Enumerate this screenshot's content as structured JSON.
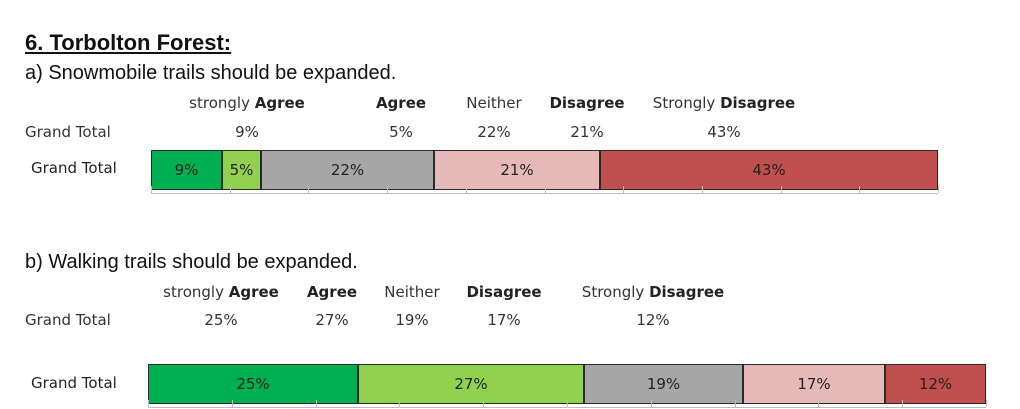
{
  "heading": "6.  Torbolton Forest:",
  "chart_data": [
    {
      "type": "bar",
      "stacked": true,
      "orientation": "horizontal",
      "title": "a) Snowmobile trails should be expanded.",
      "row_label": "Grand Total",
      "categories": [
        {
          "prefix": "strongly",
          "keyword": "Agree"
        },
        {
          "prefix": "",
          "keyword": "Agree"
        },
        {
          "prefix": "Neither",
          "keyword": ""
        },
        {
          "prefix": "",
          "keyword": "Disagree"
        },
        {
          "prefix": "Strongly",
          "keyword": "Disagree"
        }
      ],
      "series": [
        {
          "name": "strongly Agree",
          "value": 9,
          "label": "9%",
          "color": "#00b050"
        },
        {
          "name": "Agree",
          "value": 5,
          "label": "5%",
          "color": "#92d050"
        },
        {
          "name": "Neither",
          "value": 22,
          "label": "22%",
          "color": "#a6a6a6"
        },
        {
          "name": "Disagree",
          "value": 21,
          "label": "21%",
          "color": "#e6b9b8"
        },
        {
          "name": "Strongly Disagree",
          "value": 43,
          "label": "43%",
          "color": "#c0504d"
        }
      ],
      "xlim": [
        0,
        100
      ],
      "grid": false
    },
    {
      "type": "bar",
      "stacked": true,
      "orientation": "horizontal",
      "title": "b) Walking trails should be expanded.",
      "row_label": "Grand Total",
      "categories": [
        {
          "prefix": "strongly",
          "keyword": "Agree"
        },
        {
          "prefix": "",
          "keyword": "Agree"
        },
        {
          "prefix": "Neither",
          "keyword": ""
        },
        {
          "prefix": "",
          "keyword": "Disagree"
        },
        {
          "prefix": "Strongly",
          "keyword": "Disagree"
        }
      ],
      "series": [
        {
          "name": "strongly Agree",
          "value": 25,
          "label": "25%",
          "color": "#00b050"
        },
        {
          "name": "Agree",
          "value": 27,
          "label": "27%",
          "color": "#92d050"
        },
        {
          "name": "Neither",
          "value": 19,
          "label": "19%",
          "color": "#a6a6a6"
        },
        {
          "name": "Disagree",
          "value": 17,
          "label": "17%",
          "color": "#e6b9b8"
        },
        {
          "name": "Strongly Disagree",
          "value": 12,
          "label": "12%",
          "color": "#c0504d"
        }
      ],
      "xlim": [
        0,
        100
      ],
      "grid": false
    }
  ]
}
